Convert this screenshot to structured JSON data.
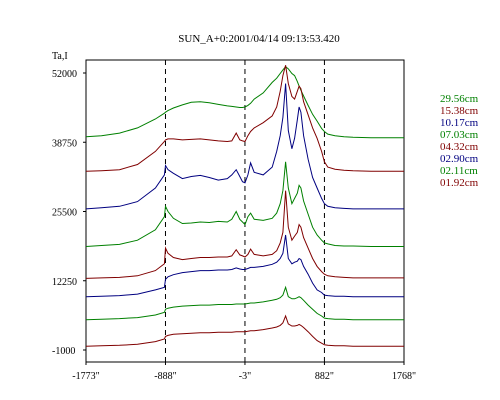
{
  "chart_data": {
    "type": "line",
    "title": "SUN_A+0:2001/04/14 09:13:53.420",
    "ylabel": "Ta,I",
    "xlabel": "",
    "ylim": [
      -1000,
      55000
    ],
    "xlim": [
      -1773,
      1768
    ],
    "y_ticks": [
      {
        "value": 52000,
        "label": "52000"
      },
      {
        "value": 38750,
        "label": "38750"
      },
      {
        "value": 25500,
        "label": "25500"
      },
      {
        "value": 12250,
        "label": "12250"
      },
      {
        "value": -1000,
        "label": "-1000"
      }
    ],
    "x_ticks": [
      {
        "value": -1773,
        "label": "-1773\""
      },
      {
        "value": -888,
        "label": "-888\""
      },
      {
        "value": -3,
        "label": "-3\""
      },
      {
        "value": 882,
        "label": "882\""
      },
      {
        "value": 1768,
        "label": "1768\""
      }
    ],
    "dashed_lines_x": [
      -888,
      -3,
      882
    ],
    "grid": false,
    "legend_position": "right",
    "x": [
      -1773,
      -1600,
      -1400,
      -1200,
      -1000,
      -900,
      -888,
      -860,
      -800,
      -700,
      -600,
      -500,
      -400,
      -300,
      -200,
      -150,
      -100,
      -60,
      -30,
      -3,
      30,
      60,
      100,
      200,
      300,
      350,
      390,
      420,
      450,
      480,
      520,
      550,
      580,
      600,
      620,
      650,
      700,
      750,
      800,
      850,
      882,
      920,
      1000,
      1100,
      1200,
      1400,
      1600,
      1768
    ],
    "series": [
      {
        "name": "29.56cm",
        "color": "#008000",
        "values": [
          39800,
          40000,
          40500,
          41500,
          43200,
          44300,
          44500,
          44800,
          45300,
          45900,
          46400,
          46500,
          46300,
          46000,
          45700,
          45600,
          45500,
          45400,
          45400,
          45500,
          45800,
          46200,
          47000,
          48200,
          50200,
          51000,
          51900,
          52600,
          53200,
          52800,
          51900,
          51500,
          50400,
          49500,
          48700,
          47600,
          45800,
          44100,
          42800,
          41400,
          40800,
          40300,
          40000,
          39800,
          39700,
          39600,
          39600,
          39600
        ]
      },
      {
        "name": "15.38cm",
        "color": "#800000",
        "values": [
          33200,
          33300,
          33500,
          34500,
          37000,
          38900,
          39200,
          39400,
          39400,
          39200,
          39300,
          39400,
          39200,
          39000,
          38900,
          39000,
          40500,
          39200,
          39000,
          38900,
          40000,
          40800,
          41500,
          42500,
          43800,
          45500,
          48500,
          51500,
          53500,
          50000,
          47500,
          47000,
          48500,
          49500,
          49000,
          46500,
          44000,
          41500,
          39500,
          37000,
          35000,
          34000,
          33600,
          33400,
          33300,
          33200,
          33200,
          33200
        ]
      },
      {
        "name": "10.17cm",
        "color": "#000080",
        "values": [
          26000,
          26200,
          26500,
          27400,
          30000,
          32500,
          34300,
          33500,
          32800,
          31800,
          32200,
          32400,
          32000,
          31500,
          31800,
          32500,
          33500,
          32200,
          31200,
          31000,
          32500,
          34800,
          33000,
          32500,
          34000,
          37000,
          40000,
          43500,
          50000,
          41000,
          37500,
          39500,
          43000,
          45500,
          44500,
          40000,
          35500,
          32000,
          30000,
          28000,
          27000,
          26500,
          26200,
          26100,
          26000,
          26000,
          26000,
          26000
        ]
      },
      {
        "name": "07.03cm",
        "color": "#008000",
        "values": [
          18800,
          19000,
          19200,
          20000,
          22000,
          24500,
          26500,
          25500,
          24200,
          23200,
          23300,
          23500,
          23400,
          23600,
          23500,
          24000,
          25500,
          24000,
          23500,
          23000,
          24500,
          25200,
          24000,
          23800,
          24200,
          25200,
          27000,
          29500,
          35000,
          30000,
          27000,
          28000,
          29000,
          30500,
          30000,
          27500,
          25000,
          22500,
          21000,
          20000,
          19500,
          19300,
          19000,
          18900,
          18900,
          18800,
          18800,
          18800
        ]
      },
      {
        "name": "04.32cm",
        "color": "#800000",
        "values": [
          12700,
          12800,
          12900,
          13200,
          14200,
          15500,
          18500,
          17500,
          16700,
          16300,
          16500,
          16700,
          16700,
          16800,
          16800,
          17000,
          18200,
          17200,
          17000,
          16800,
          17300,
          18300,
          17300,
          17000,
          17300,
          18000,
          19500,
          21500,
          29500,
          22500,
          20000,
          20800,
          21500,
          23000,
          22500,
          20500,
          18500,
          16500,
          15000,
          14000,
          13500,
          13200,
          13000,
          12900,
          12800,
          12800,
          12800,
          12800
        ]
      },
      {
        "name": "02.90cm",
        "color": "#000080",
        "values": [
          9200,
          9300,
          9400,
          9700,
          10500,
          11000,
          12500,
          13000,
          13400,
          13800,
          14000,
          14200,
          14200,
          14300,
          14300,
          14400,
          14700,
          14500,
          14400,
          14400,
          14600,
          14800,
          14800,
          15000,
          15400,
          15800,
          16500,
          17500,
          21000,
          16500,
          15500,
          15800,
          16000,
          16500,
          16300,
          15000,
          13500,
          11800,
          10500,
          10000,
          9500,
          9400,
          9300,
          9300,
          9200,
          9200,
          9200,
          9200
        ]
      },
      {
        "name": "02.11cm",
        "color": "#008000",
        "values": [
          4800,
          4900,
          5000,
          5200,
          5700,
          6200,
          6800,
          7000,
          7200,
          7400,
          7500,
          7600,
          7600,
          7700,
          7700,
          7700,
          7800,
          7800,
          7800,
          7800,
          7900,
          8000,
          8000,
          8200,
          8500,
          8700,
          9000,
          9500,
          11000,
          9200,
          8800,
          8800,
          9000,
          9200,
          9000,
          8500,
          7600,
          6800,
          6000,
          5500,
          5100,
          5000,
          4900,
          4900,
          4800,
          4800,
          4800,
          4800
        ]
      },
      {
        "name": "01.92cm",
        "color": "#800000",
        "values": [
          -300,
          -200,
          -100,
          100,
          600,
          1100,
          1600,
          1800,
          2000,
          2100,
          2200,
          2300,
          2300,
          2400,
          2400,
          2400,
          2500,
          2500,
          2500,
          2500,
          2600,
          2700,
          2700,
          2900,
          3200,
          3400,
          3700,
          4200,
          5500,
          4000,
          3600,
          3600,
          3700,
          3900,
          3700,
          3300,
          2500,
          1600,
          800,
          300,
          0,
          -100,
          -200,
          -200,
          -300,
          -300,
          -300,
          -300
        ]
      }
    ]
  }
}
